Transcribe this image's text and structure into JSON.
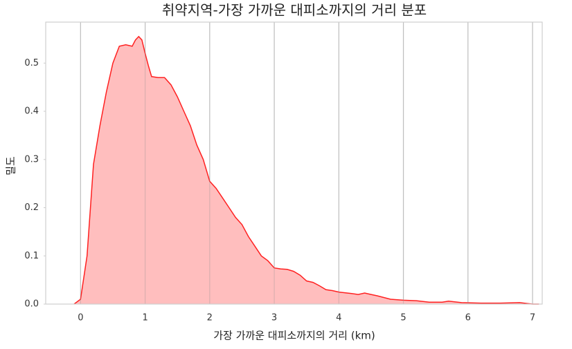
{
  "chart_data": {
    "type": "area",
    "title": "취약지역-가장 가까운 대피소까지의 거리 분포",
    "xlabel": "가장 가까운 대피소까지의 거리 (km)",
    "ylabel": "밀도",
    "x": [
      -0.1,
      0,
      0.1,
      0.2,
      0.3,
      0.4,
      0.5,
      0.6,
      0.7,
      0.8,
      0.85,
      0.9,
      0.95,
      1.0,
      1.05,
      1.1,
      1.2,
      1.3,
      1.4,
      1.5,
      1.6,
      1.7,
      1.8,
      1.9,
      2.0,
      2.1,
      2.2,
      2.3,
      2.4,
      2.5,
      2.6,
      2.7,
      2.8,
      2.9,
      3.0,
      3.1,
      3.2,
      3.3,
      3.4,
      3.5,
      3.6,
      3.7,
      3.8,
      3.9,
      4.0,
      4.2,
      4.3,
      4.4,
      4.5,
      4.6,
      4.8,
      5.0,
      5.2,
      5.4,
      5.6,
      5.7,
      5.9,
      6.2,
      6.5,
      6.8,
      7.0,
      7.1
    ],
    "series": [
      {
        "color": "#ff2020",
        "fill": "#ffbaba",
        "values": [
          0,
          0.01,
          0.1,
          0.29,
          0.37,
          0.44,
          0.5,
          0.535,
          0.538,
          0.535,
          0.548,
          0.555,
          0.548,
          0.52,
          0.495,
          0.472,
          0.47,
          0.47,
          0.455,
          0.43,
          0.4,
          0.37,
          0.33,
          0.3,
          0.255,
          0.24,
          0.22,
          0.2,
          0.18,
          0.165,
          0.14,
          0.12,
          0.1,
          0.09,
          0.075,
          0.073,
          0.072,
          0.068,
          0.06,
          0.048,
          0.045,
          0.038,
          0.03,
          0.028,
          0.025,
          0.022,
          0.02,
          0.023,
          0.02,
          0.017,
          0.01,
          0.008,
          0.007,
          0.004,
          0.004,
          0.006,
          0.003,
          0.002,
          0.002,
          0.003,
          0.0,
          0
        ]
      }
    ],
    "xlim": [
      -0.54,
      7.15
    ],
    "ylim": [
      0,
      0.585
    ],
    "xticks": [
      0,
      1,
      2,
      3,
      4,
      5,
      6,
      7
    ],
    "yticks": [
      {
        "value": 0,
        "label": "0.0"
      },
      0.1,
      0.2,
      0.3,
      0.4,
      0.5
    ],
    "grid": true
  }
}
